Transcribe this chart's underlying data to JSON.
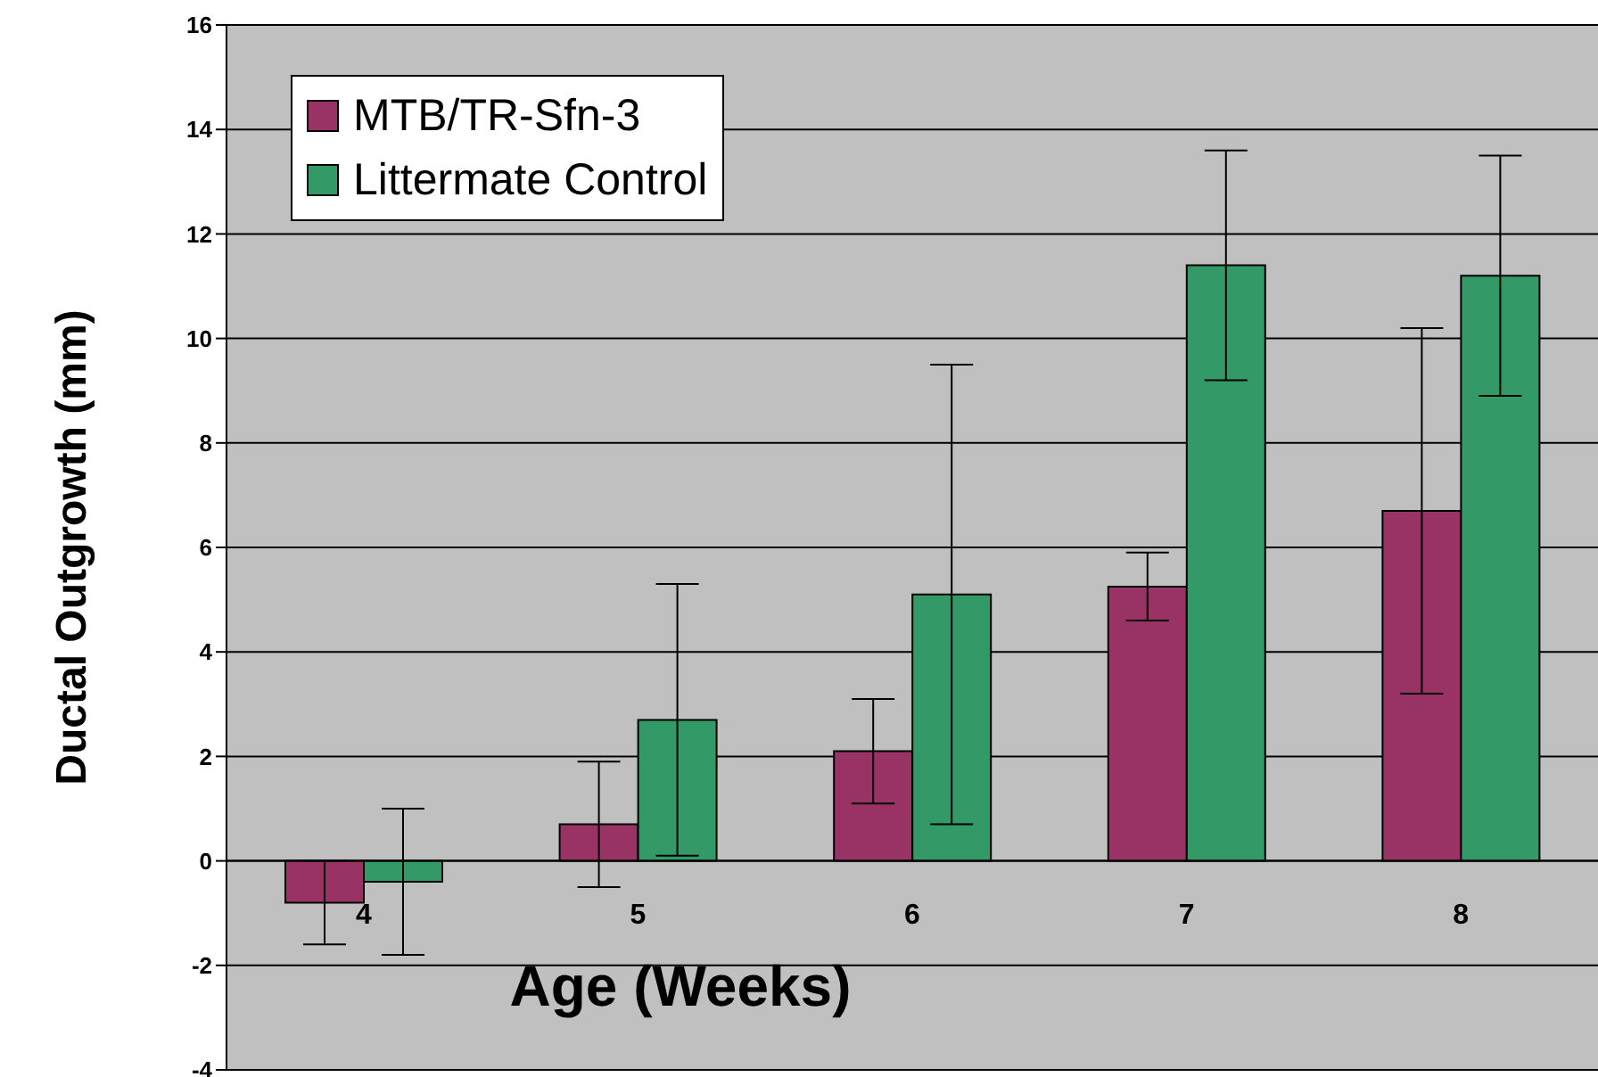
{
  "chart_data": {
    "type": "bar",
    "xlabel": "Age (Weeks)",
    "ylabel": "Ductal Outgrowth (mm)",
    "categories": [
      "4",
      "5",
      "6",
      "7",
      "8"
    ],
    "series": [
      {
        "name": "MTB/TR-Sfn-3",
        "color": "#993366",
        "values": [
          -0.8,
          0.7,
          2.1,
          5.25,
          6.7
        ],
        "errors": [
          0.8,
          1.2,
          1.0,
          0.65,
          3.5
        ]
      },
      {
        "name": "Littermate Control",
        "color": "#339966",
        "values": [
          -0.4,
          2.7,
          5.1,
          11.4,
          11.2
        ],
        "errors": [
          1.4,
          2.6,
          4.4,
          2.2,
          2.3
        ]
      }
    ],
    "ylim": [
      -4,
      16
    ],
    "yticks": [
      -4,
      -2,
      0,
      2,
      4,
      6,
      8,
      10,
      12,
      14,
      16
    ],
    "grid": "y",
    "legend": "top left"
  }
}
